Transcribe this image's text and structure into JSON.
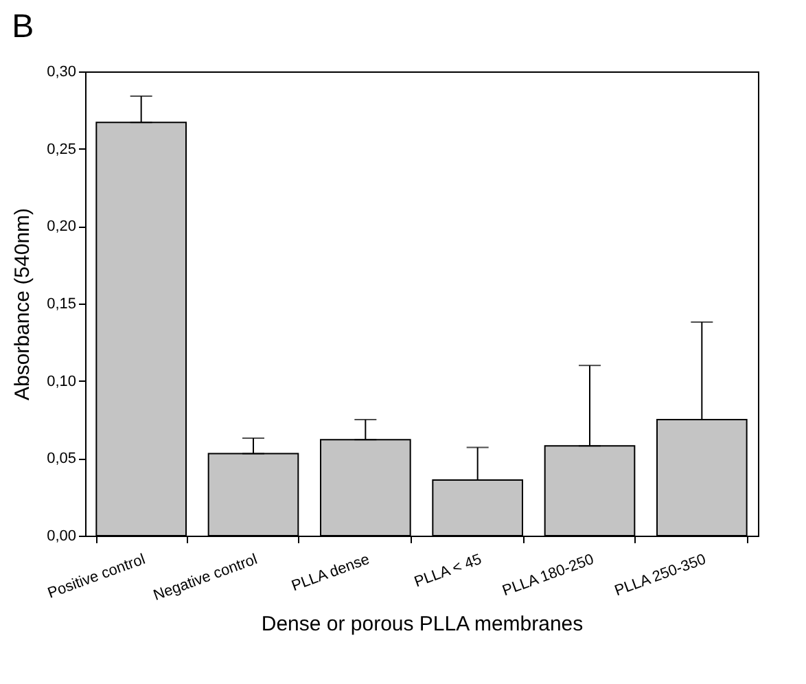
{
  "chart_data": {
    "type": "bar",
    "title": "B",
    "xlabel": "Dense or porous PLLA membranes",
    "ylabel": "Absorbance (540nm)",
    "categories": [
      "Positive control",
      "Negative control",
      "PLLA dense",
      "PLLA < 45",
      "PLLA 180-250",
      "PLLA 250-350"
    ],
    "values": [
      0.267,
      0.053,
      0.062,
      0.036,
      0.058,
      0.075
    ],
    "errors": [
      [
        0.267,
        0.284
      ],
      [
        0.053,
        0.063
      ],
      [
        0.062,
        0.075
      ],
      [
        0.036,
        0.057
      ],
      [
        0.058,
        0.11
      ],
      [
        0.075,
        0.138
      ]
    ],
    "color": "#c4c4c4",
    "ylim": [
      0,
      0.3
    ],
    "yticks": [
      {
        "value": 0,
        "label": "0,00"
      },
      {
        "value": 0.05,
        "label": "0,05"
      },
      {
        "value": 0.1,
        "label": "0,10"
      },
      {
        "value": 0.15,
        "label": "0,15"
      },
      {
        "value": 0.2,
        "label": "0,20"
      },
      {
        "value": 0.25,
        "label": "0,25"
      },
      {
        "value": 0.3,
        "label": "0,30"
      }
    ],
    "grid": false
  }
}
